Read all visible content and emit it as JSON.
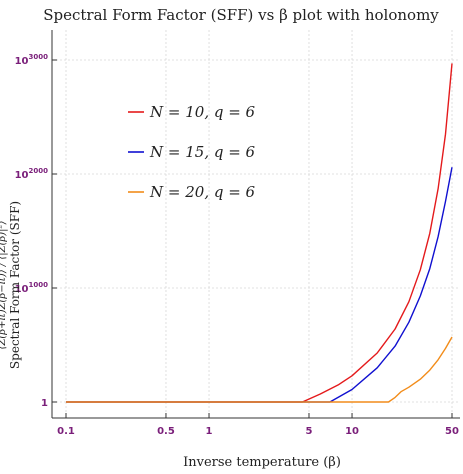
{
  "chart_data": {
    "type": "line",
    "title": "Spectral Form Factor (SFF) vs β plot with holonomy",
    "xlabel": "Inverse temperature (β)",
    "ylabel": "Spectral Form Factor (SFF)",
    "ylabel_formula": "⟨Z(β+it)Z(β−it)⟩ / ⟨|Z(β)|²⟩",
    "x_scale": "log",
    "y_scale": "log",
    "xlim": [
      0.1,
      50
    ],
    "ylim_exponent": [
      0,
      3000
    ],
    "x_ticks": [
      {
        "value": 0.1,
        "label": "0.1"
      },
      {
        "value": 0.5,
        "label": "0.5"
      },
      {
        "value": 1,
        "label": "1"
      },
      {
        "value": 5,
        "label": "5"
      },
      {
        "value": 10,
        "label": "10"
      },
      {
        "value": 50,
        "label": "50"
      }
    ],
    "y_ticks": [
      {
        "exponent": 0,
        "base": "1",
        "sup": ""
      },
      {
        "exponent": 1000,
        "base": "10",
        "sup": "1000"
      },
      {
        "exponent": 2000,
        "base": "10",
        "sup": "2000"
      },
      {
        "exponent": 3000,
        "base": "10",
        "sup": "3000"
      }
    ],
    "legend_position": "top-left",
    "grid": true,
    "series": [
      {
        "name": "N = 10, q = 6",
        "color": "#e41a1c",
        "x": [
          0.1,
          1,
          4.5,
          6,
          8,
          10,
          15,
          20,
          25,
          30,
          35,
          40,
          45,
          50
        ],
        "log10_y": [
          0,
          0,
          0,
          70,
          150,
          230,
          430,
          640,
          880,
          1160,
          1480,
          1870,
          2350,
          2970
        ]
      },
      {
        "name": "N = 15, q = 6",
        "color": "#1010d0",
        "x": [
          0.1,
          1,
          7,
          10,
          15,
          20,
          25,
          30,
          35,
          40,
          45,
          50
        ],
        "log10_y": [
          0,
          0,
          0,
          110,
          300,
          490,
          700,
          930,
          1170,
          1450,
          1760,
          2060
        ]
      },
      {
        "name": "N = 20, q = 6",
        "color": "#f28c1a",
        "x": [
          0.1,
          1,
          10,
          18,
          20,
          22,
          25,
          30,
          35,
          40,
          45,
          50
        ],
        "log10_y": [
          0,
          0,
          0,
          0,
          40,
          90,
          130,
          200,
          280,
          370,
          470,
          570
        ]
      }
    ]
  }
}
